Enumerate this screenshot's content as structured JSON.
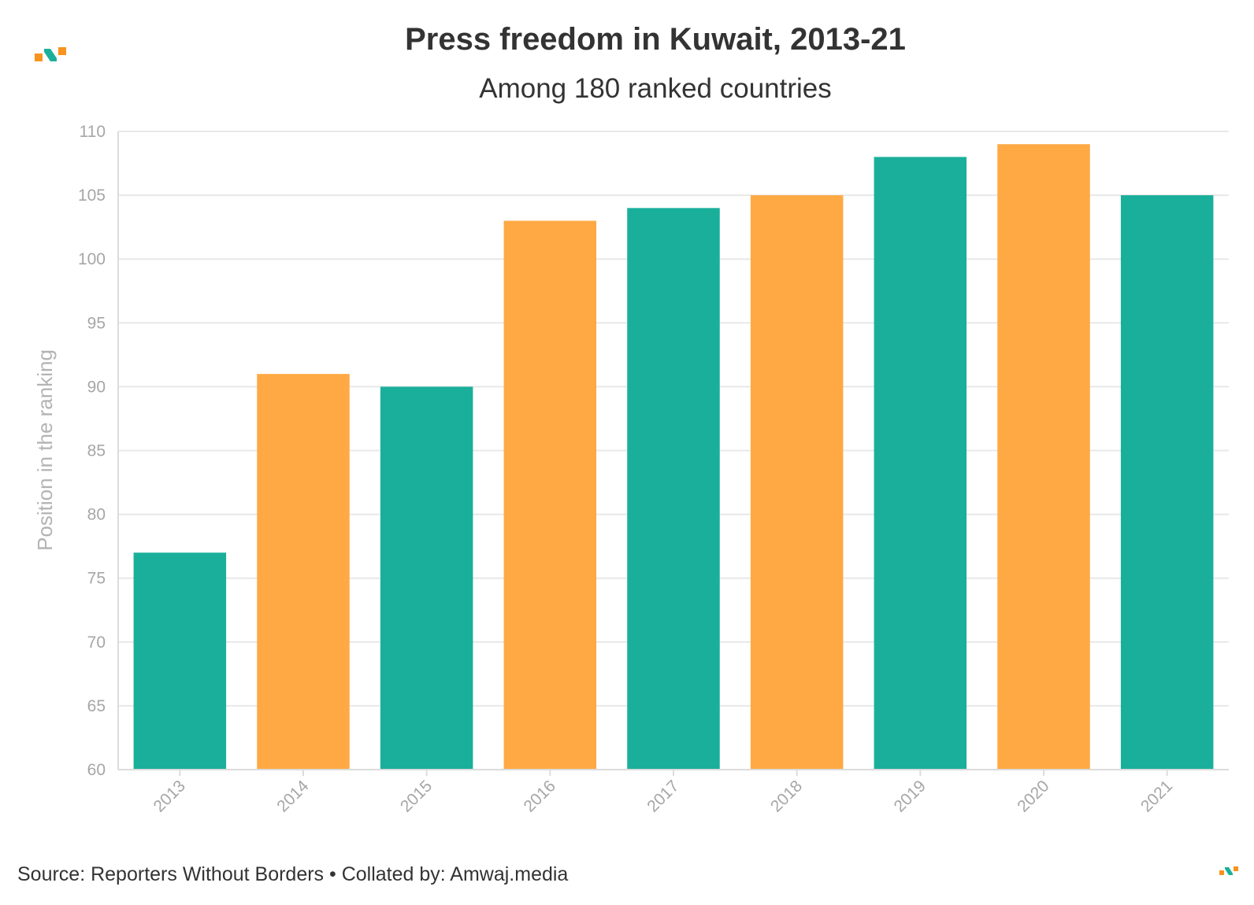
{
  "title": "Press freedom in Kuwait, 2013-21",
  "subtitle": "Among 180 ranked countries",
  "source": "Source: Reporters Without Borders • Collated by: Amwaj.media",
  "logo_icon": "amwaj-logo-icon",
  "colors": {
    "teal": "#1aaf9b",
    "orange": "#ffa944",
    "logo_orange": "#f7931e",
    "logo_teal": "#1aaf9b"
  },
  "chart_data": {
    "type": "bar",
    "categories": [
      "2013",
      "2014",
      "2015",
      "2016",
      "2017",
      "2018",
      "2019",
      "2020",
      "2021"
    ],
    "values": [
      77,
      91,
      90,
      103,
      104,
      105,
      108,
      109,
      105
    ],
    "bar_colors": [
      "#1aaf9b",
      "#ffa944",
      "#1aaf9b",
      "#ffa944",
      "#1aaf9b",
      "#ffa944",
      "#1aaf9b",
      "#ffa944",
      "#1aaf9b"
    ],
    "title": "Press freedom in Kuwait, 2013-21",
    "subtitle": "Among 180 ranked countries",
    "xlabel": "",
    "ylabel": "Position in the ranking",
    "ylim": [
      60,
      110
    ],
    "yticks": [
      60,
      65,
      70,
      75,
      80,
      85,
      90,
      95,
      100,
      105,
      110
    ],
    "grid": true,
    "legend": "none"
  }
}
